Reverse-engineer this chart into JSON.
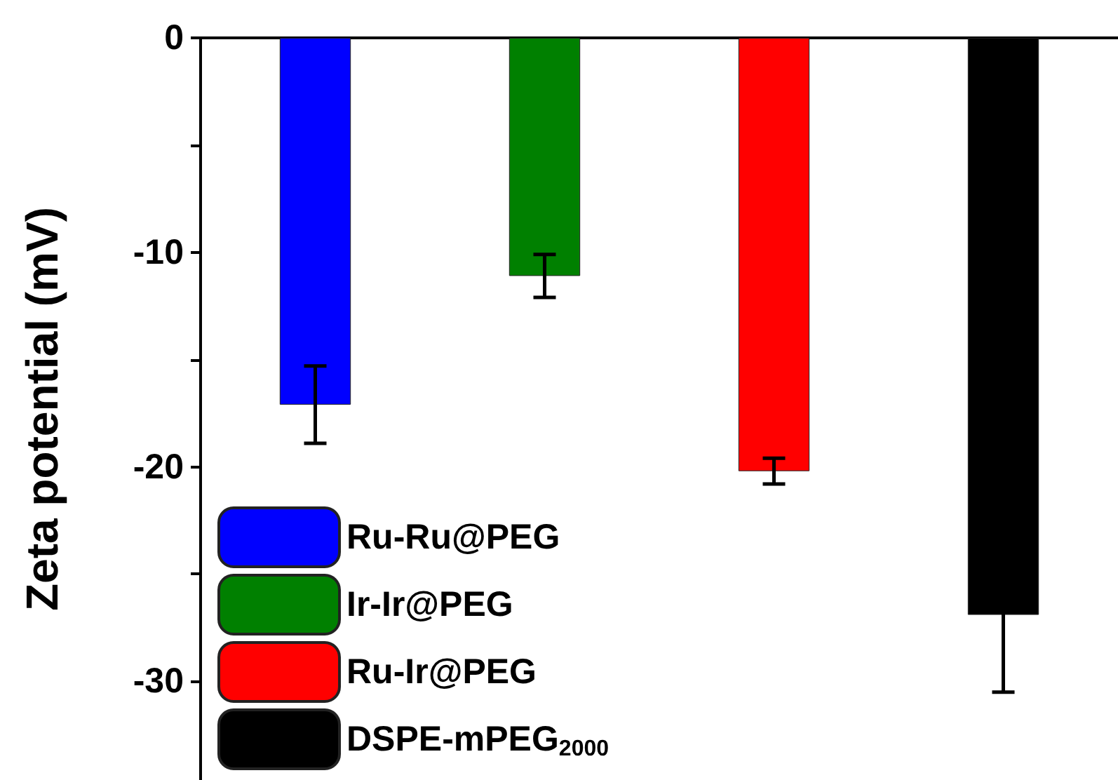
{
  "chart_data": {
    "type": "bar",
    "ylabel": "Zeta potential (mV)",
    "categories": [
      null,
      null,
      null,
      null
    ],
    "series": [
      {
        "name": "Ru-Ru@PEG",
        "color": "#0000ff",
        "values": [
          -17.1,
          null,
          null,
          null
        ],
        "errors": [
          1.8,
          null,
          null,
          null
        ]
      },
      {
        "name": "Ir-Ir@PEG",
        "color": "#008000",
        "values": [
          null,
          -11.1,
          null,
          null
        ],
        "errors": [
          null,
          1.0,
          null,
          null
        ]
      },
      {
        "name": "Ru-Ir@PEG",
        "color": "#ff0000",
        "values": [
          null,
          null,
          -20.2,
          null
        ],
        "errors": [
          null,
          null,
          0.6,
          null
        ]
      },
      {
        "name": "DSPE-mPEG$_{2000}$",
        "color": "#000000",
        "values": [
          null,
          null,
          null,
          -26.9
        ],
        "errors": [
          null,
          null,
          null,
          3.6
        ]
      }
    ],
    "ylim": [
      -34.6,
      0
    ],
    "yticks": [
      0,
      {
        "value": -5,
        "label": null
      },
      -10,
      {
        "value": -15,
        "label": null
      },
      -20,
      {
        "value": -25,
        "label": null
      },
      -30
    ],
    "grid": false,
    "legend": "bottom left",
    "tick_labels": "y"
  }
}
